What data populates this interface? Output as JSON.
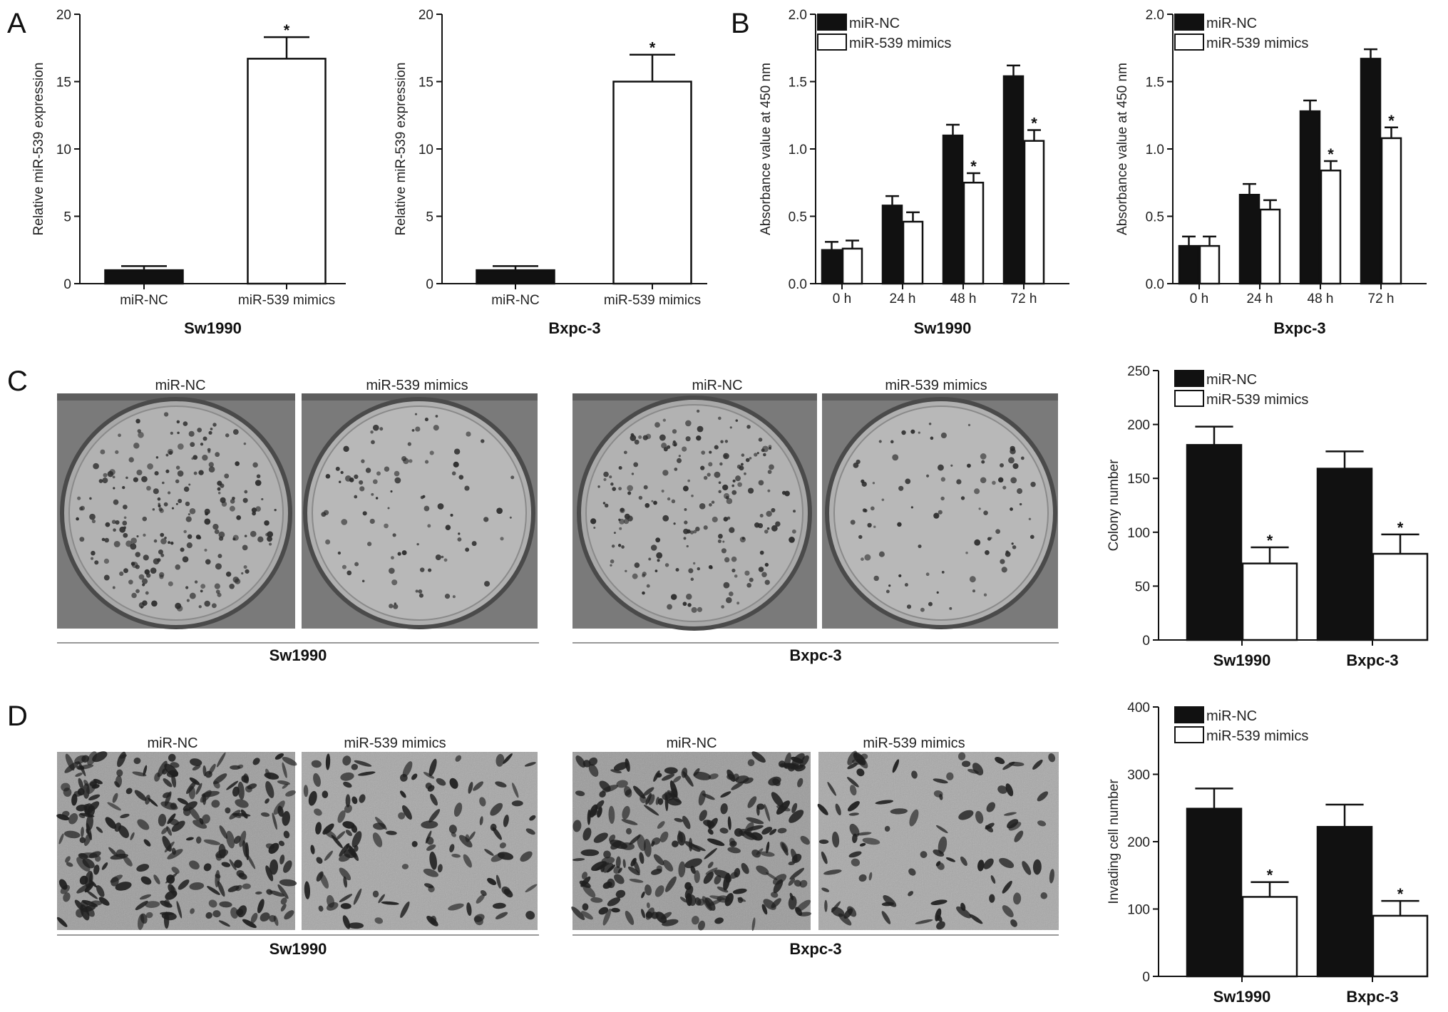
{
  "panels": {
    "a": "A",
    "b": "B",
    "c": "C",
    "d": "D"
  },
  "chart_data": [
    {
      "id": "A1",
      "type": "bar",
      "group": "Sw1990",
      "categories": [
        "miR-NC",
        "miR-539 mimics"
      ],
      "values": [
        1.0,
        16.7
      ],
      "errors": [
        0.3,
        1.6
      ],
      "fills": [
        "#111111",
        "#ffffff"
      ],
      "significant": [
        false,
        true
      ],
      "ylabel": "Relative miR-539 expression",
      "ylim": [
        0,
        20
      ],
      "yticks": [
        "0",
        "5",
        "10",
        "15",
        "20"
      ],
      "star": "*"
    },
    {
      "id": "A2",
      "type": "bar",
      "group": "Bxpc-3",
      "categories": [
        "miR-NC",
        "miR-539 mimics"
      ],
      "values": [
        1.0,
        15.0
      ],
      "errors": [
        0.3,
        2.0
      ],
      "fills": [
        "#111111",
        "#ffffff"
      ],
      "significant": [
        false,
        true
      ],
      "ylabel": "Relative miR-539 expression",
      "ylim": [
        0,
        20
      ],
      "yticks": [
        "0",
        "5",
        "10",
        "15",
        "20"
      ],
      "star": "*"
    },
    {
      "id": "B1",
      "type": "bar",
      "group": "Sw1990",
      "categories": [
        "0 h",
        "24 h",
        "48 h",
        "72 h"
      ],
      "series": [
        {
          "name": "miR-NC",
          "fill": "#111111",
          "values": [
            0.25,
            0.58,
            1.1,
            1.54
          ],
          "errors": [
            0.06,
            0.07,
            0.08,
            0.08
          ],
          "significant": [
            false,
            false,
            false,
            false
          ]
        },
        {
          "name": "miR-539 mimics",
          "fill": "#ffffff",
          "values": [
            0.26,
            0.46,
            0.75,
            1.06
          ],
          "errors": [
            0.06,
            0.07,
            0.07,
            0.08
          ],
          "significant": [
            false,
            false,
            true,
            true
          ]
        }
      ],
      "ylabel": "Absorbance value at 450 nm",
      "ylim": [
        0,
        2.0
      ],
      "yticks": [
        "0.0",
        "0.5",
        "1.0",
        "1.5",
        "2.0"
      ],
      "legend": "top-left",
      "star": "*"
    },
    {
      "id": "B2",
      "type": "bar",
      "group": "Bxpc-3",
      "categories": [
        "0 h",
        "24 h",
        "48 h",
        "72 h"
      ],
      "series": [
        {
          "name": "miR-NC",
          "fill": "#111111",
          "values": [
            0.28,
            0.66,
            1.28,
            1.67
          ],
          "errors": [
            0.07,
            0.08,
            0.08,
            0.07
          ],
          "significant": [
            false,
            false,
            false,
            false
          ]
        },
        {
          "name": "miR-539 mimics",
          "fill": "#ffffff",
          "values": [
            0.28,
            0.55,
            0.84,
            1.08
          ],
          "errors": [
            0.07,
            0.07,
            0.07,
            0.08
          ],
          "significant": [
            false,
            false,
            true,
            true
          ]
        }
      ],
      "ylabel": "Absorbance value at 450 nm",
      "ylim": [
        0,
        2.0
      ],
      "yticks": [
        "0.0",
        "0.5",
        "1.0",
        "1.5",
        "2.0"
      ],
      "legend": "top-left",
      "star": "*"
    },
    {
      "id": "C",
      "type": "bar",
      "group": "",
      "categories": [
        "Sw1990",
        "Bxpc-3"
      ],
      "series": [
        {
          "name": "miR-NC",
          "fill": "#111111",
          "values": [
            181,
            159
          ],
          "errors": [
            17,
            16
          ],
          "significant": [
            false,
            false
          ]
        },
        {
          "name": "miR-539 mimics",
          "fill": "#ffffff",
          "values": [
            71,
            80
          ],
          "errors": [
            15,
            18
          ],
          "significant": [
            true,
            true
          ]
        }
      ],
      "ylabel": "Colony number",
      "ylim": [
        0,
        250
      ],
      "yticks": [
        "0",
        "50",
        "100",
        "150",
        "200",
        "250"
      ],
      "legend": "top-left",
      "star": "*"
    },
    {
      "id": "D",
      "type": "bar",
      "group": "",
      "categories": [
        "Sw1990",
        "Bxpc-3"
      ],
      "series": [
        {
          "name": "miR-NC",
          "fill": "#111111",
          "values": [
            249,
            222
          ],
          "errors": [
            30,
            33
          ],
          "significant": [
            false,
            false
          ]
        },
        {
          "name": "miR-539 mimics",
          "fill": "#ffffff",
          "values": [
            118,
            90
          ],
          "errors": [
            22,
            22
          ],
          "significant": [
            true,
            true
          ]
        }
      ],
      "ylabel": "Invading cell number",
      "ylim": [
        0,
        400
      ],
      "yticks": [
        "0",
        "100",
        "200",
        "300",
        "400"
      ],
      "legend": "top-left",
      "star": "*"
    }
  ],
  "micrographs": {
    "C": {
      "captions": [
        "miR-NC",
        "miR-539 mimics",
        "miR-NC",
        "miR-539 mimics"
      ],
      "groups": [
        "Sw1990",
        "Bxpc-3"
      ]
    },
    "D": {
      "captions": [
        "miR-NC",
        "miR-539 mimics",
        "miR-NC",
        "miR-539 mimics"
      ],
      "groups": [
        "Sw1990",
        "Bxpc-3"
      ]
    }
  }
}
